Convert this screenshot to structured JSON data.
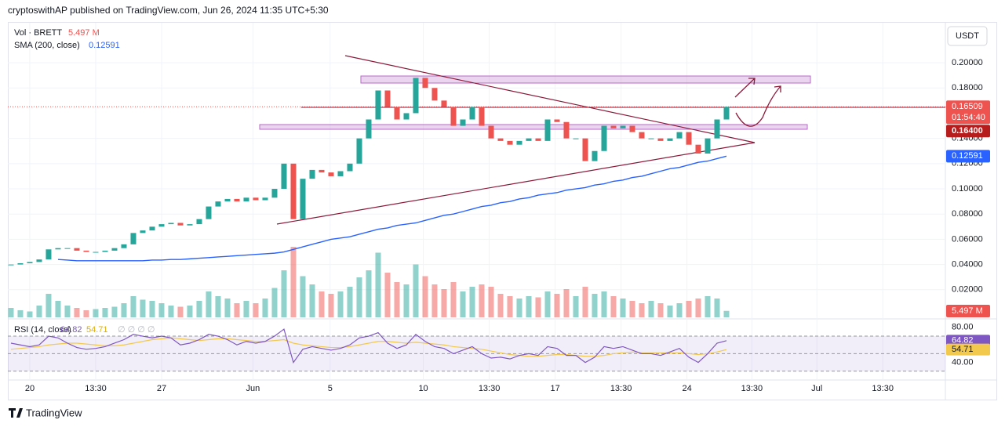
{
  "header": {
    "text": "cryptoswithAP published on TradingView.com, Jun 26, 2024 11:35 UTC+5:30"
  },
  "footer": {
    "brand": "TradingView"
  },
  "chart_data": {
    "type": "candlestick",
    "currency": "USDT",
    "legend": {
      "vol_name": "Vol · BRETT",
      "vol_value": "5.497 M",
      "sma_name": "SMA (200, close)",
      "sma_value": "0.12591",
      "rsi_name": "RSI (14, close)",
      "rsi_value": "64.82",
      "rsi_ma_value": "54.71",
      "rsi_extra": "∅ ∅ ∅ ∅"
    },
    "up_color": "#26a69a",
    "down_color": "#ef5350",
    "close": [
      0.04,
      0.041,
      0.042,
      0.044,
      0.052,
      0.053,
      0.053,
      0.051,
      0.05,
      0.05,
      0.051,
      0.053,
      0.056,
      0.065,
      0.067,
      0.07,
      0.072,
      0.073,
      0.071,
      0.072,
      0.076,
      0.086,
      0.09,
      0.092,
      0.09,
      0.093,
      0.091,
      0.093,
      0.1,
      0.12,
      0.076,
      0.108,
      0.115,
      0.113,
      0.11,
      0.114,
      0.12,
      0.14,
      0.155,
      0.178,
      0.165,
      0.155,
      0.16,
      0.188,
      0.18,
      0.17,
      0.165,
      0.15,
      0.155,
      0.165,
      0.15,
      0.14,
      0.138,
      0.135,
      0.138,
      0.14,
      0.138,
      0.155,
      0.153,
      0.14,
      0.14,
      0.122,
      0.13,
      0.15,
      0.148,
      0.15,
      0.145,
      0.14,
      0.14,
      0.138,
      0.14,
      0.145,
      0.135,
      0.128,
      0.14,
      0.155,
      0.16509
    ],
    "xlim": [
      -0.33,
      99.25
    ],
    "xticks": [
      {
        "value": 2,
        "label": "20"
      },
      {
        "value": 9,
        "label": "13:30"
      },
      {
        "value": 16,
        "label": "27"
      },
      {
        "value": 25.7,
        "label": "Jun"
      },
      {
        "value": 33.9,
        "label": "5"
      },
      {
        "value": 43.8,
        "label": "10"
      },
      {
        "value": 50.8,
        "label": "13:30"
      },
      {
        "value": 57.8,
        "label": "17"
      },
      {
        "value": 64.8,
        "label": "13:30"
      },
      {
        "value": 71.8,
        "label": "24"
      },
      {
        "value": 78.7,
        "label": "13:30"
      },
      {
        "value": 85.6,
        "label": "Jul"
      },
      {
        "value": 92.6,
        "label": "13:30"
      }
    ],
    "ylim": [
      0,
      0.228
    ],
    "yticks": [
      {
        "value": 0.2,
        "label": "0.20000"
      },
      {
        "value": 0.18,
        "label": "0.18000"
      },
      {
        "value": 0.14,
        "label": "0.14000"
      },
      {
        "value": 0.12,
        "label": "0.12000"
      },
      {
        "value": 0.1,
        "label": "0.10000"
      },
      {
        "value": 0.08,
        "label": "0.08000"
      },
      {
        "value": 0.06,
        "label": "0.06000"
      },
      {
        "value": 0.04,
        "label": "0.04000"
      },
      {
        "value": 0.02,
        "label": "0.02000"
      }
    ],
    "last_price": {
      "value": 0.16509,
      "label": "0.16509"
    },
    "countdown": "01:54:40",
    "level_label": "0.16400",
    "sma": {
      "color": "#2962ff",
      "values": [
        null,
        null,
        null,
        null,
        null,
        0.044,
        0.0435,
        0.043,
        0.043,
        0.043,
        0.043,
        0.043,
        0.043,
        0.043,
        0.043,
        0.0435,
        0.0435,
        0.044,
        0.044,
        0.0445,
        0.045,
        0.0455,
        0.046,
        0.0465,
        0.047,
        0.0475,
        0.048,
        0.0485,
        0.049,
        0.05,
        0.052,
        0.054,
        0.056,
        0.058,
        0.06,
        0.061,
        0.062,
        0.064,
        0.066,
        0.068,
        0.069,
        0.071,
        0.072,
        0.073,
        0.075,
        0.077,
        0.079,
        0.08,
        0.082,
        0.084,
        0.086,
        0.087,
        0.089,
        0.09,
        0.092,
        0.093,
        0.095,
        0.096,
        0.097,
        0.099,
        0.1,
        0.101,
        0.103,
        0.104,
        0.106,
        0.107,
        0.109,
        0.11,
        0.112,
        0.114,
        0.116,
        0.117,
        0.119,
        0.121,
        0.122,
        0.124,
        0.12591
      ]
    },
    "volume": {
      "ylim": [
        0,
        60
      ],
      "values": [
        8,
        6,
        5,
        10,
        20,
        14,
        10,
        8,
        6,
        7,
        8,
        9,
        12,
        18,
        15,
        14,
        12,
        10,
        9,
        10,
        14,
        22,
        18,
        16,
        12,
        14,
        12,
        16,
        25,
        40,
        60,
        35,
        28,
        22,
        20,
        22,
        26,
        34,
        40,
        55,
        38,
        30,
        28,
        45,
        35,
        28,
        24,
        30,
        22,
        26,
        28,
        26,
        20,
        18,
        16,
        18,
        17,
        22,
        20,
        24,
        18,
        26,
        20,
        22,
        18,
        16,
        14,
        12,
        14,
        12,
        10,
        12,
        14,
        16,
        18,
        16,
        5.497
      ]
    },
    "rsi": {
      "color": "#7e57c2",
      "ma_color": "#f2c94c",
      "ylim": [
        20,
        87
      ],
      "yticks": [
        {
          "value": 80,
          "label": "80.00"
        },
        {
          "value": 40,
          "label": "40.00"
        }
      ],
      "bands": [
        70,
        50,
        30
      ],
      "values": [
        62,
        60,
        58,
        60,
        70,
        68,
        62,
        57,
        55,
        56,
        58,
        62,
        66,
        72,
        70,
        68,
        70,
        68,
        60,
        62,
        66,
        72,
        70,
        66,
        60,
        64,
        62,
        64,
        70,
        78,
        40,
        55,
        58,
        56,
        54,
        56,
        60,
        68,
        70,
        74,
        62,
        56,
        60,
        72,
        64,
        58,
        56,
        50,
        54,
        58,
        50,
        45,
        46,
        44,
        48,
        50,
        48,
        58,
        56,
        48,
        48,
        40,
        46,
        58,
        56,
        58,
        54,
        50,
        50,
        48,
        52,
        56,
        46,
        40,
        50,
        62,
        64.82
      ],
      "ma": [
        55,
        56,
        57,
        58,
        60,
        61,
        62,
        62,
        61,
        60,
        59,
        59,
        60,
        62,
        64,
        66,
        67,
        68,
        67,
        66,
        65,
        66,
        67,
        67,
        66,
        65,
        64,
        64,
        65,
        66,
        62,
        60,
        59,
        58,
        57,
        57,
        58,
        60,
        62,
        64,
        64,
        63,
        62,
        63,
        62,
        61,
        60,
        58,
        57,
        56,
        55,
        53,
        51,
        49,
        48,
        47,
        47,
        48,
        49,
        49,
        48,
        47,
        47,
        48,
        50,
        51,
        52,
        51,
        51,
        51,
        51,
        51,
        50,
        49,
        50,
        52,
        54.71
      ]
    }
  }
}
